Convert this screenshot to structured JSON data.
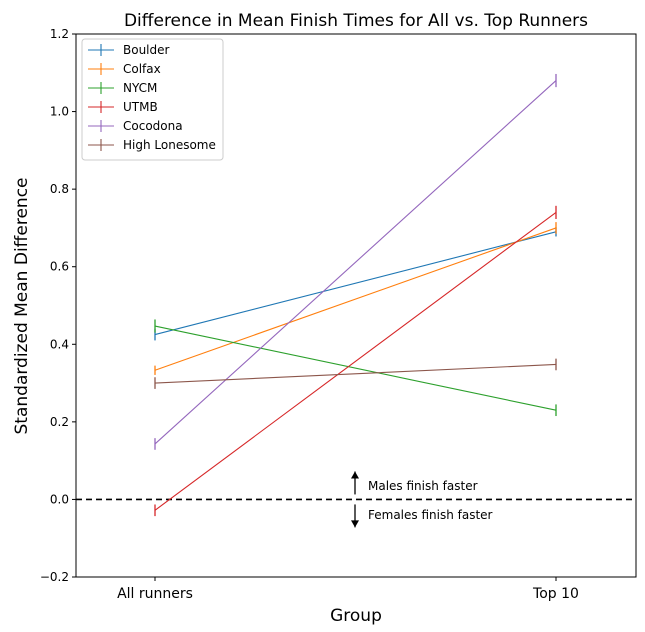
{
  "chart_data": {
    "type": "line",
    "title": "Difference in Mean Finish Times for All vs. Top Runners",
    "xlabel": "Group",
    "ylabel": "Standardized Mean Difference",
    "categories": [
      "All runners",
      "Top 10"
    ],
    "ylim": [
      -0.2,
      1.2
    ],
    "yticks": [
      -0.2,
      0.0,
      0.2,
      0.4,
      0.6,
      0.8,
      1.0,
      1.2
    ],
    "ytick_labels": [
      "−0.2",
      "0.0",
      "0.2",
      "0.4",
      "0.6",
      "0.8",
      "1.0",
      "1.2"
    ],
    "grid": false,
    "legend_position": "top-left",
    "series": [
      {
        "name": "Boulder",
        "color": "#1f77b4",
        "values": [
          0.425,
          0.69
        ],
        "errors": [
          0.015,
          0.012
        ]
      },
      {
        "name": "Colfax",
        "color": "#ff7f0e",
        "values": [
          0.333,
          0.7
        ],
        "errors": [
          0.012,
          0.015
        ]
      },
      {
        "name": "NYCM",
        "color": "#2ca02c",
        "values": [
          0.447,
          0.23
        ],
        "errors": [
          0.017,
          0.015
        ]
      },
      {
        "name": "UTMB",
        "color": "#d62728",
        "values": [
          -0.028,
          0.74
        ],
        "errors": [
          0.015,
          0.017
        ]
      },
      {
        "name": "Cocodona",
        "color": "#9467bd",
        "values": [
          0.143,
          1.08
        ],
        "errors": [
          0.015,
          0.017
        ]
      },
      {
        "name": "High Lonesome",
        "color": "#8c564b",
        "values": [
          0.3,
          0.348
        ],
        "errors": [
          0.015,
          0.015
        ]
      }
    ],
    "reference_line": {
      "y": 0.0,
      "style": "dashed",
      "color": "#000000"
    },
    "annotations": [
      {
        "text": "Males finish faster",
        "direction": "up"
      },
      {
        "text": "Females finish faster",
        "direction": "down"
      }
    ]
  }
}
